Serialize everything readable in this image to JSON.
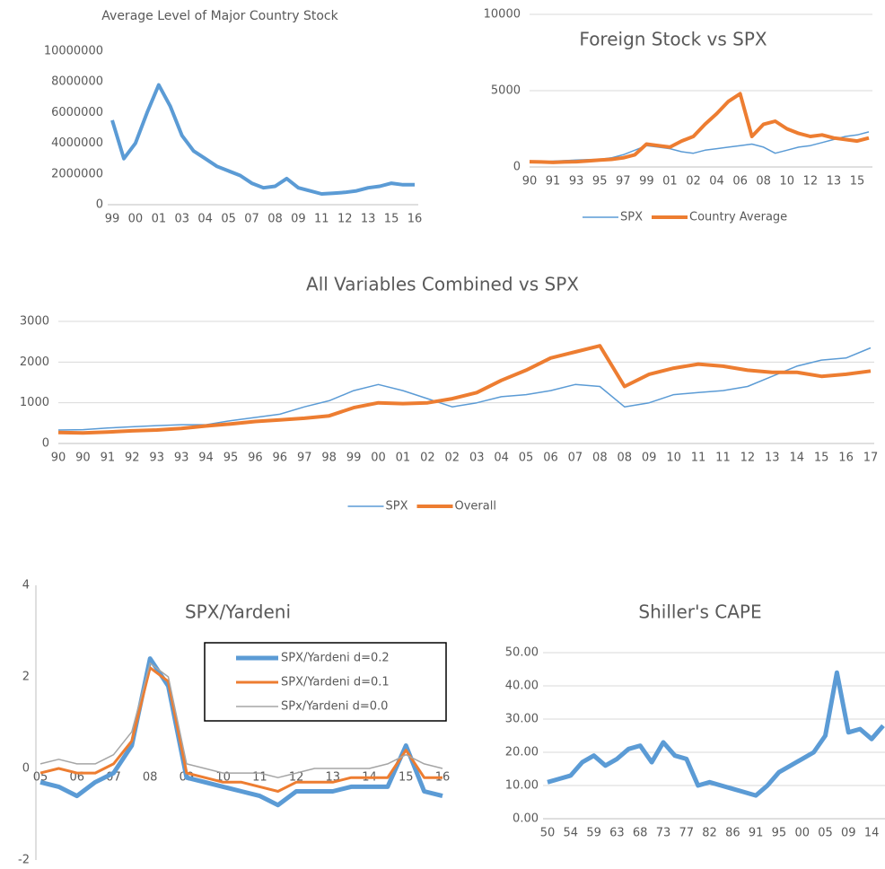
{
  "chart_data": [
    {
      "type": "line",
      "title": "Average Level of Major Country Stock",
      "color": "#5b9bd5",
      "categories": [
        "99",
        null,
        "00",
        null,
        "01",
        null,
        "03",
        null,
        "04",
        null,
        "05",
        null,
        "07",
        null,
        "08",
        null,
        "09",
        null,
        "11",
        null,
        "12",
        null,
        "13",
        null,
        "15",
        null,
        "16"
      ],
      "values": [
        5500000,
        3000000,
        4000000,
        6000000,
        7800000,
        6400000,
        4500000,
        3500000,
        3000000,
        2500000,
        2200000,
        1900000,
        1400000,
        1100000,
        1200000,
        1700000,
        1100000,
        900000,
        700000,
        750000,
        800000,
        900000,
        1100000,
        1200000,
        1400000,
        1300000,
        1300000
      ],
      "ylim": [
        0,
        10000000
      ],
      "yticks": [
        0,
        2000000,
        4000000,
        6000000,
        8000000,
        10000000
      ],
      "grid": false
    },
    {
      "type": "line",
      "title": "Foreign Stock vs SPX",
      "categories": [
        "90",
        null,
        "91",
        null,
        "93",
        null,
        "95",
        null,
        "97",
        null,
        "99",
        null,
        "01",
        null,
        "02",
        null,
        "04",
        null,
        "06",
        null,
        "08",
        null,
        "10",
        null,
        "12",
        null,
        "13",
        null,
        "15",
        null
      ],
      "series": [
        {
          "name": "SPX",
          "color": "#5b9bd5",
          "values": [
            330,
            350,
            380,
            420,
            450,
            480,
            500,
            600,
            800,
            1100,
            1400,
            1300,
            1200,
            1000,
            900,
            1100,
            1200,
            1300,
            1400,
            1500,
            1300,
            900,
            1100,
            1300,
            1400,
            1600,
            1800,
            2000,
            2100,
            2300
          ]
        },
        {
          "name": "Country Average",
          "color": "#ed7d31",
          "values": [
            350,
            330,
            300,
            330,
            350,
            400,
            450,
            500,
            600,
            800,
            1500,
            1400,
            1300,
            1700,
            2000,
            2800,
            3500,
            4300,
            4800,
            2000,
            2800,
            3000,
            2500,
            2200,
            2000,
            2100,
            1900,
            1800,
            1700,
            1900
          ]
        }
      ],
      "ylim": [
        0,
        10000
      ],
      "yticks": [
        0,
        5000,
        10000
      ],
      "grid": true,
      "legend": "bottom"
    },
    {
      "type": "line",
      "title": "All Variables Combined vs SPX",
      "categories": [
        "90",
        "90",
        "91",
        "92",
        "93",
        "93",
        "94",
        "95",
        "96",
        "96",
        "97",
        "98",
        "99",
        "00",
        "01",
        "02",
        "02",
        "03",
        "04",
        "05",
        "06",
        "07",
        "08",
        "08",
        "09",
        "10",
        "11",
        "11",
        "12",
        "13",
        "14",
        "15",
        "16",
        "17"
      ],
      "series": [
        {
          "name": "SPX",
          "color": "#5b9bd5",
          "values": [
            330,
            340,
            380,
            410,
            440,
            460,
            460,
            560,
            640,
            720,
            900,
            1050,
            1300,
            1450,
            1300,
            1100,
            900,
            1000,
            1150,
            1200,
            1300,
            1450,
            1400,
            900,
            1000,
            1200,
            1250,
            1300,
            1400,
            1650,
            1900,
            2050,
            2100,
            2350
          ]
        },
        {
          "name": "Overall",
          "color": "#ed7d31",
          "values": [
            270,
            260,
            280,
            310,
            330,
            370,
            430,
            480,
            540,
            580,
            620,
            680,
            880,
            1000,
            980,
            1000,
            1100,
            1250,
            1550,
            1800,
            2100,
            2250,
            2400,
            1400,
            1700,
            1850,
            1950,
            1900,
            1800,
            1750,
            1750,
            1650,
            1700,
            1780
          ]
        }
      ],
      "ylim": [
        0,
        3000
      ],
      "yticks": [
        0,
        1000,
        2000,
        3000
      ],
      "grid": true,
      "legend": "bottom"
    },
    {
      "type": "line",
      "title": "SPX/Yardeni",
      "categories": [
        "05",
        null,
        "06",
        null,
        "07",
        null,
        "08",
        null,
        "09",
        null,
        "10",
        null,
        "11",
        null,
        "12",
        null,
        "13",
        null,
        "14",
        null,
        "15",
        null,
        "16"
      ],
      "series": [
        {
          "name": "SPX/Yardeni d=0.2",
          "color": "#5b9bd5",
          "values": [
            -0.3,
            -0.4,
            -0.6,
            -0.3,
            -0.1,
            0.5,
            2.4,
            1.8,
            -0.2,
            -0.3,
            -0.4,
            -0.5,
            -0.6,
            -0.8,
            -0.5,
            -0.5,
            -0.5,
            -0.4,
            -0.4,
            -0.4,
            0.5,
            -0.5,
            -0.6
          ]
        },
        {
          "name": "SPX/Yardeni d=0.1",
          "color": "#ed7d31",
          "values": [
            -0.1,
            0.0,
            -0.1,
            -0.1,
            0.1,
            0.6,
            2.2,
            1.9,
            -0.1,
            -0.2,
            -0.3,
            -0.3,
            -0.4,
            -0.5,
            -0.3,
            -0.3,
            -0.3,
            -0.2,
            -0.2,
            -0.2,
            0.4,
            -0.2,
            -0.2
          ]
        },
        {
          "name": "SPx/Yardeni d=0.0",
          "color": "#a5a5a5",
          "values": [
            0.1,
            0.2,
            0.1,
            0.1,
            0.3,
            0.8,
            2.3,
            2.0,
            0.1,
            0.0,
            -0.1,
            -0.1,
            -0.1,
            -0.2,
            -0.1,
            0.0,
            0.0,
            0.0,
            0.0,
            0.1,
            0.3,
            0.1,
            0.0
          ]
        }
      ],
      "ylim": [
        -2,
        4
      ],
      "yticks": [
        -2,
        0,
        2,
        4
      ],
      "grid": false,
      "legend": "top-right"
    },
    {
      "type": "line",
      "title": "Shiller's CAPE",
      "color": "#5b9bd5",
      "categories": [
        "50",
        null,
        "54",
        null,
        "59",
        null,
        "63",
        null,
        "68",
        null,
        "73",
        null,
        "77",
        null,
        "82",
        null,
        "86",
        null,
        "91",
        null,
        "95",
        null,
        "00",
        null,
        "05",
        null,
        "09",
        null,
        "14",
        null
      ],
      "values": [
        11,
        12,
        13,
        17,
        19,
        16,
        18,
        21,
        22,
        17,
        23,
        19,
        18,
        10,
        11,
        10,
        9,
        8,
        7,
        10,
        14,
        16,
        18,
        20,
        25,
        44,
        26,
        27,
        24,
        28
      ],
      "ylim": [
        0,
        50
      ],
      "yticks": [
        {
          "value": 0,
          "label": "0.00"
        },
        {
          "value": 10,
          "label": "10.00"
        },
        {
          "value": 20,
          "label": "20.00"
        },
        {
          "value": 30,
          "label": "30.00"
        },
        {
          "value": 40,
          "label": "40.00"
        },
        {
          "value": 50,
          "label": "50.00"
        }
      ],
      "grid": true
    }
  ]
}
